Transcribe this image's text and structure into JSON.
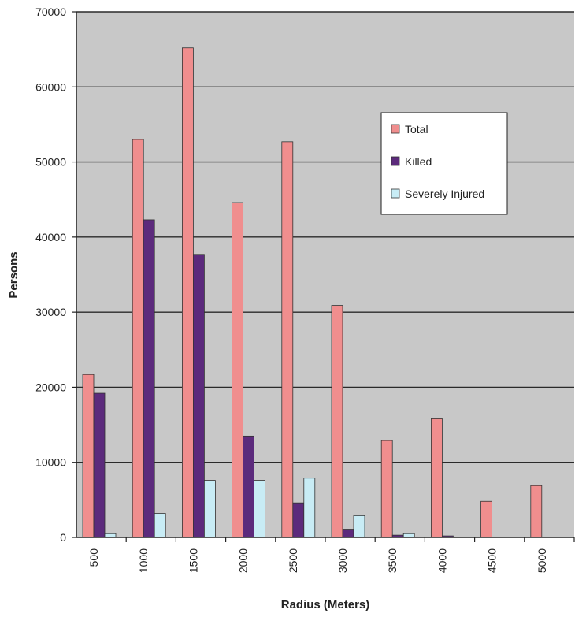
{
  "chart_data": {
    "type": "bar",
    "xlabel": "Radius (Meters)",
    "ylabel": "Persons",
    "categories": [
      "500",
      "1000",
      "1500",
      "2000",
      "2500",
      "3000",
      "3500",
      "4000",
      "4500",
      "5000"
    ],
    "series": [
      {
        "name": "Total",
        "color": "#f08e8e",
        "values": [
          21700,
          53000,
          65200,
          44600,
          52700,
          30900,
          12900,
          15800,
          4800,
          6900
        ]
      },
      {
        "name": "Killed",
        "color": "#5c2a7c",
        "values": [
          19200,
          42300,
          37700,
          13500,
          4600,
          1100,
          300,
          200,
          0,
          0
        ]
      },
      {
        "name": "Severely Injured",
        "color": "#c8ecf5",
        "values": [
          500,
          3200,
          7600,
          7600,
          7900,
          2900,
          500,
          0,
          0,
          0
        ]
      }
    ],
    "ylim": [
      0,
      70000
    ],
    "yticks": [
      0,
      10000,
      20000,
      30000,
      40000,
      50000,
      60000,
      70000
    ],
    "grid": true,
    "legend_position": "top-right",
    "plot_background": "#c8c8c8"
  }
}
